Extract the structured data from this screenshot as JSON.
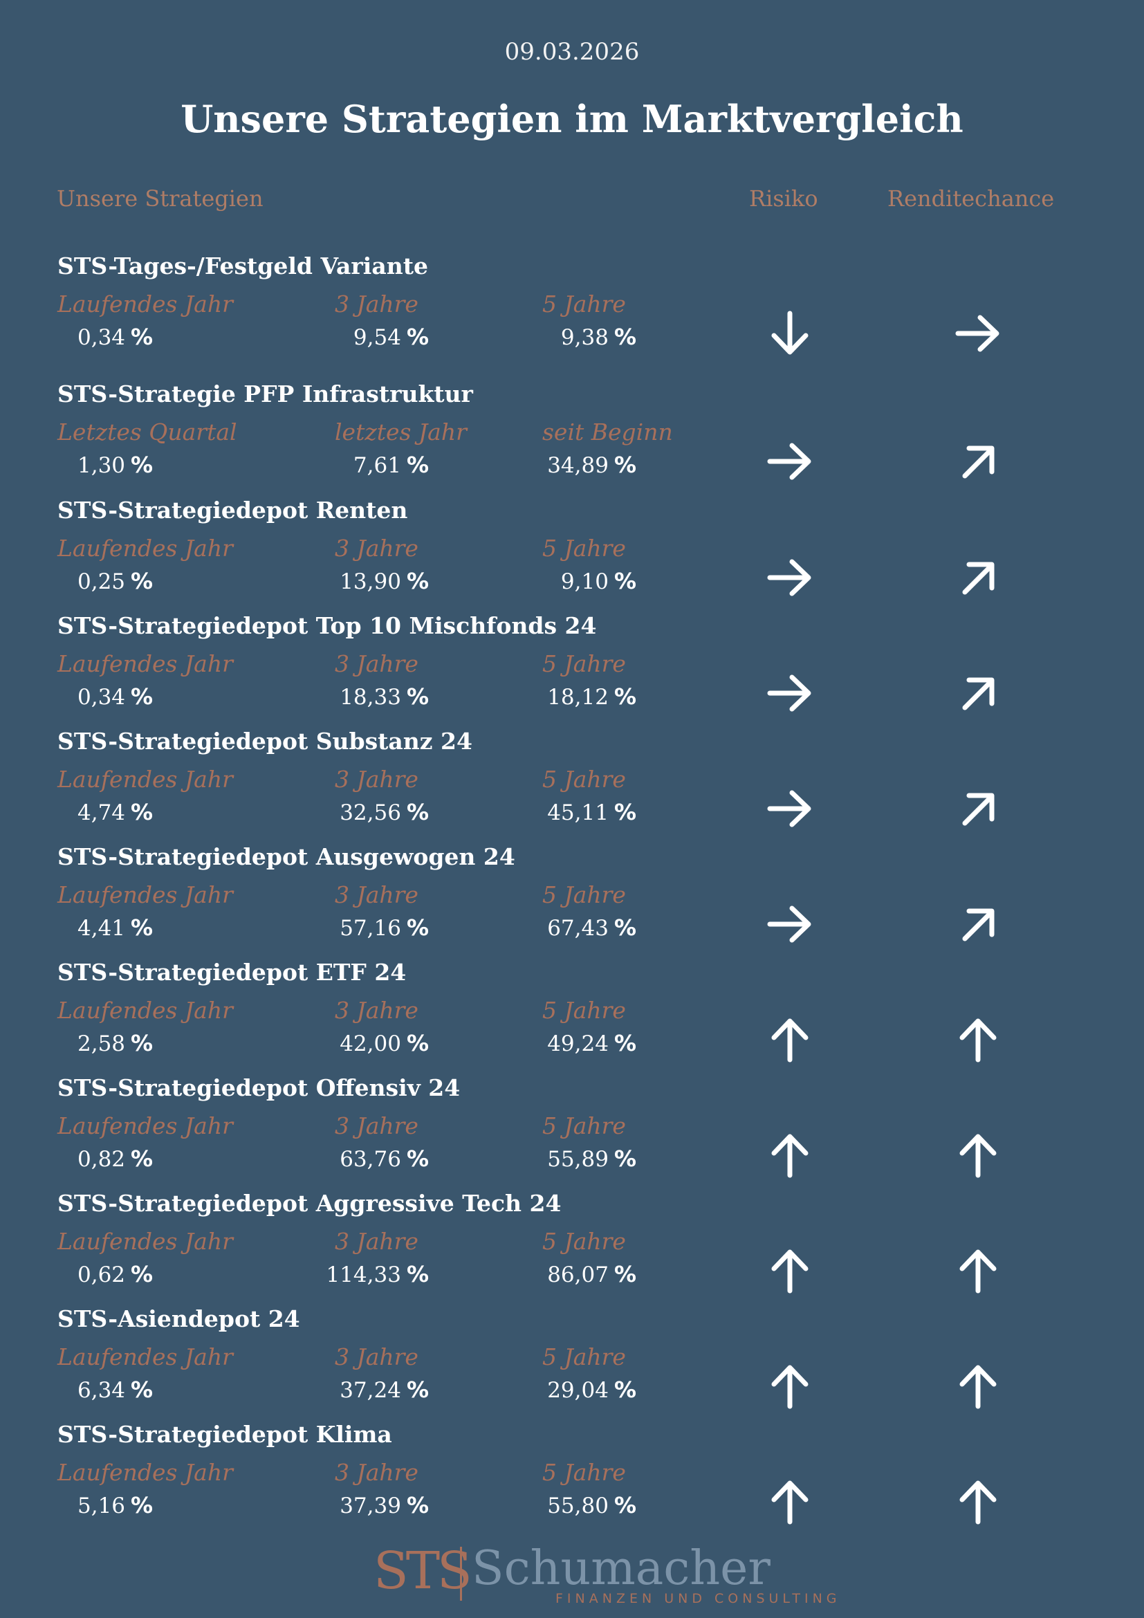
{
  "date": "09.03.2026",
  "title": "Unsere Strategien im Marktvergleich",
  "headers": {
    "strategies": "Unsere Strategien",
    "risk": "Risiko",
    "return": "Renditechance"
  },
  "percent_sign": "%",
  "strategies": [
    {
      "name": "STS-Tages-/Festgeld Variante",
      "labels": [
        "Laufendes Jahr",
        "3 Jahre",
        "5 Jahre"
      ],
      "values": [
        "0,34",
        "9,54",
        "9,38"
      ],
      "risk": "arrow-down-icon",
      "return": "arrow-right-icon"
    },
    {
      "name": "STS-Strategie PFP Infrastruktur",
      "labels": [
        "Letztes Quartal",
        "letztes Jahr",
        "seit Beginn"
      ],
      "values": [
        "1,30",
        "7,61",
        "34,89"
      ],
      "risk": "arrow-right-icon",
      "return": "arrow-up-right-icon"
    },
    {
      "name": "STS-Strategiedepot Renten",
      "labels": [
        "Laufendes Jahr",
        "3 Jahre",
        "5 Jahre"
      ],
      "values": [
        "0,25",
        "13,90",
        "9,10"
      ],
      "risk": "arrow-right-icon",
      "return": "arrow-up-right-icon"
    },
    {
      "name": "STS-Strategiedepot Top 10 Mischfonds 24",
      "labels": [
        "Laufendes Jahr",
        "3 Jahre",
        "5 Jahre"
      ],
      "values": [
        "0,34",
        "18,33",
        "18,12"
      ],
      "risk": "arrow-right-icon",
      "return": "arrow-up-right-icon"
    },
    {
      "name": "STS-Strategiedepot Substanz 24",
      "labels": [
        "Laufendes Jahr",
        "3 Jahre",
        "5 Jahre"
      ],
      "values": [
        "4,74",
        "32,56",
        "45,11"
      ],
      "risk": "arrow-right-icon",
      "return": "arrow-up-right-icon"
    },
    {
      "name": "STS-Strategiedepot Ausgewogen 24",
      "labels": [
        "Laufendes Jahr",
        "3 Jahre",
        "5 Jahre"
      ],
      "values": [
        "4,41",
        "57,16",
        "67,43"
      ],
      "risk": "arrow-right-icon",
      "return": "arrow-up-right-icon"
    },
    {
      "name": "STS-Strategiedepot ETF 24",
      "labels": [
        "Laufendes Jahr",
        "3 Jahre",
        "5 Jahre"
      ],
      "values": [
        "2,58",
        "42,00",
        "49,24"
      ],
      "risk": "arrow-up-icon",
      "return": "arrow-up-icon"
    },
    {
      "name": "STS-Strategiedepot Offensiv 24",
      "labels": [
        "Laufendes Jahr",
        "3 Jahre",
        "5 Jahre"
      ],
      "values": [
        "0,82",
        "63,76",
        "55,89"
      ],
      "risk": "arrow-up-icon",
      "return": "arrow-up-icon"
    },
    {
      "name": "STS-Strategiedepot Aggressive Tech 24",
      "labels": [
        "Laufendes Jahr",
        "3 Jahre",
        "5 Jahre"
      ],
      "values": [
        "0,62",
        "114,33",
        "86,07"
      ],
      "risk": "arrow-up-icon",
      "return": "arrow-up-icon"
    },
    {
      "name": "STS-Asiendepot 24",
      "labels": [
        "Laufendes Jahr",
        "3 Jahre",
        "5 Jahre"
      ],
      "values": [
        "6,34",
        "37,24",
        "29,04"
      ],
      "risk": "arrow-up-icon",
      "return": "arrow-up-icon"
    },
    {
      "name": "STS-Strategiedepot Klima",
      "labels": [
        "Laufendes Jahr",
        "3 Jahre",
        "5 Jahre"
      ],
      "values": [
        "5,16",
        "37,39",
        "55,80"
      ],
      "risk": "arrow-up-icon",
      "return": "arrow-up-icon"
    }
  ],
  "footer": {
    "logo_mark": "STS",
    "company": "Schumacher",
    "tagline": "FINANZEN UND CONSULTING"
  }
}
